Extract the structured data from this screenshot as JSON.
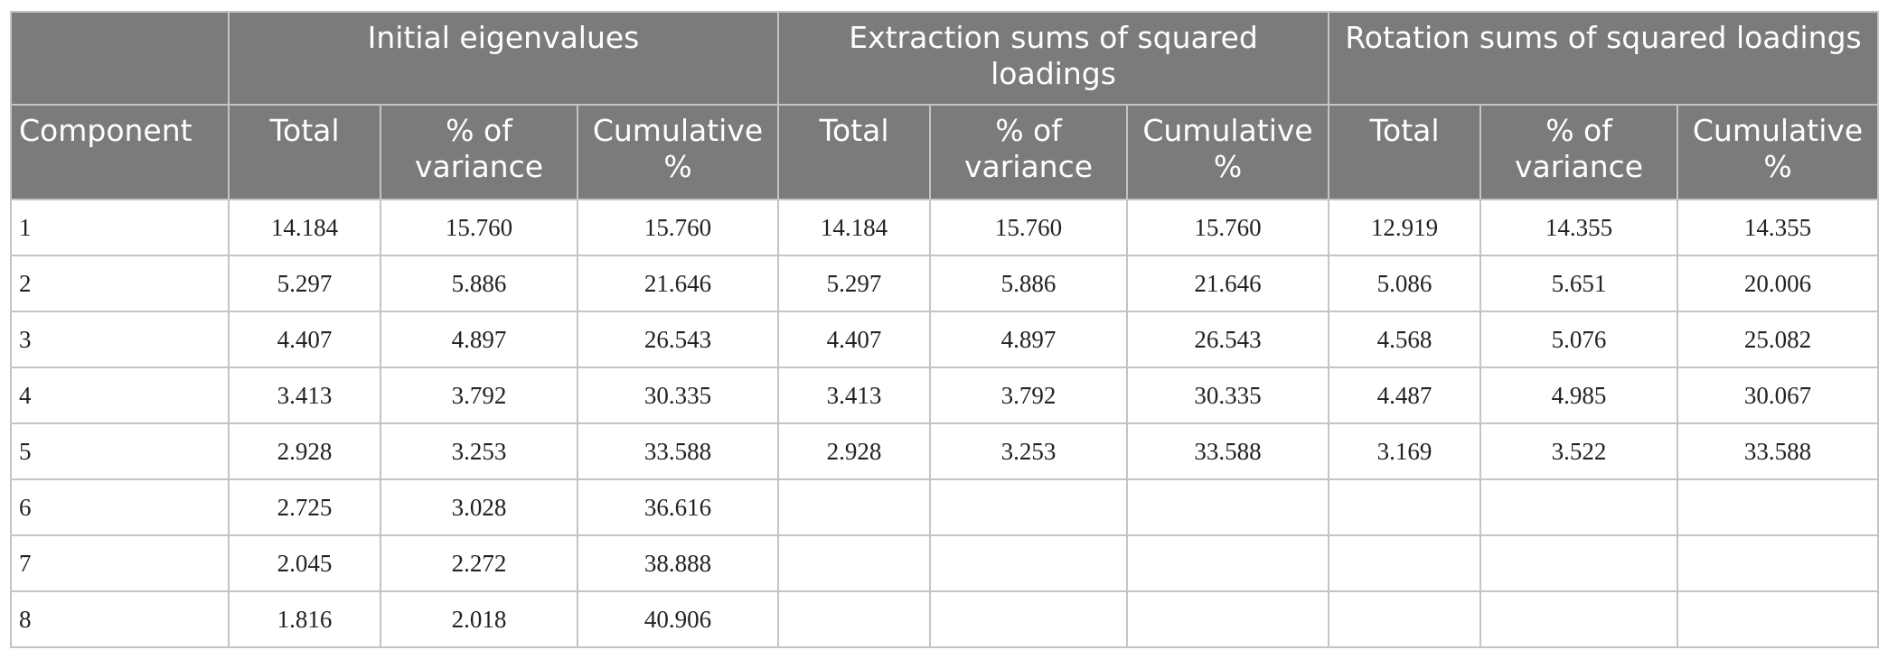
{
  "table": {
    "groups": [
      {
        "label": "",
        "span": 1
      },
      {
        "label": "Initial eigenvalues",
        "span": 3
      },
      {
        "label": "Extraction sums of squared loadings",
        "span": 3
      },
      {
        "label": "Rotation sums of squared loadings",
        "span": 3
      }
    ],
    "columns": [
      "Component",
      "Total",
      "% of variance",
      "Cumulative %",
      "Total",
      "% of variance",
      "Cumulative %",
      "Total",
      "% of variance",
      "Cumulative %"
    ],
    "rows": [
      [
        "1",
        "14.184",
        "15.760",
        "15.760",
        "14.184",
        "15.760",
        "15.760",
        "12.919",
        "14.355",
        "14.355"
      ],
      [
        "2",
        "5.297",
        "5.886",
        "21.646",
        "5.297",
        "5.886",
        "21.646",
        "5.086",
        "5.651",
        "20.006"
      ],
      [
        "3",
        "4.407",
        "4.897",
        "26.543",
        "4.407",
        "4.897",
        "26.543",
        "4.568",
        "5.076",
        "25.082"
      ],
      [
        "4",
        "3.413",
        "3.792",
        "30.335",
        "3.413",
        "3.792",
        "30.335",
        "4.487",
        "4.985",
        "30.067"
      ],
      [
        "5",
        "2.928",
        "3.253",
        "33.588",
        "2.928",
        "3.253",
        "33.588",
        "3.169",
        "3.522",
        "33.588"
      ],
      [
        "6",
        "2.725",
        "3.028",
        "36.616",
        "",
        "",
        "",
        "",
        "",
        ""
      ],
      [
        "7",
        "2.045",
        "2.272",
        "38.888",
        "",
        "",
        "",
        "",
        "",
        ""
      ],
      [
        "8",
        "1.816",
        "2.018",
        "40.906",
        "",
        "",
        "",
        "",
        "",
        ""
      ]
    ]
  },
  "colors": {
    "header_bg": "#7b7b7b",
    "header_text": "#ffffff",
    "border": "#c4c4c4"
  }
}
